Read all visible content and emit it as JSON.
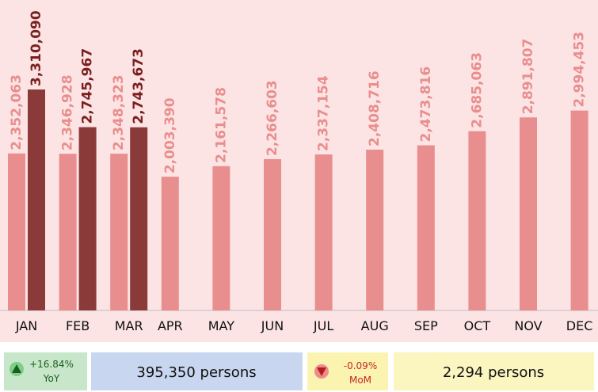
{
  "chart_data": {
    "type": "bar",
    "categories": [
      "JAN",
      "FEB",
      "MAR",
      "APR",
      "MAY",
      "JUN",
      "JUL",
      "AUG",
      "SEP",
      "OCT",
      "NOV",
      "DEC"
    ],
    "series": [
      {
        "color": "#e88e8e",
        "values": [
          2352063,
          2346928,
          2348323,
          2003390,
          2161578,
          2266603,
          2337154,
          2408716,
          2473816,
          2685063,
          2891807,
          2994453
        ],
        "value_labels": [
          "2,352,063",
          "2,346,928",
          "2,348,323",
          "2,003,390",
          "2,161,578",
          "2,266,603",
          "2,337,154",
          "2,408,716",
          "2,473,816",
          "2,685,063",
          "2,891,807",
          "2,994,453"
        ]
      },
      {
        "color": "#8b3a3a",
        "values": [
          3310090,
          2745967,
          2743673,
          null,
          null,
          null,
          null,
          null,
          null,
          null,
          null,
          null
        ],
        "value_labels": [
          "3,310,090",
          "2,745,967",
          "2,743,673",
          null,
          null,
          null,
          null,
          null,
          null,
          null,
          null,
          null
        ]
      }
    ]
  },
  "summary": {
    "yoy": {
      "change": "+16.84%",
      "label": "YoY",
      "amount": "395,350 persons"
    },
    "mom": {
      "change": "-0.09%",
      "label": "MoM",
      "amount": "2,294 persons"
    }
  }
}
